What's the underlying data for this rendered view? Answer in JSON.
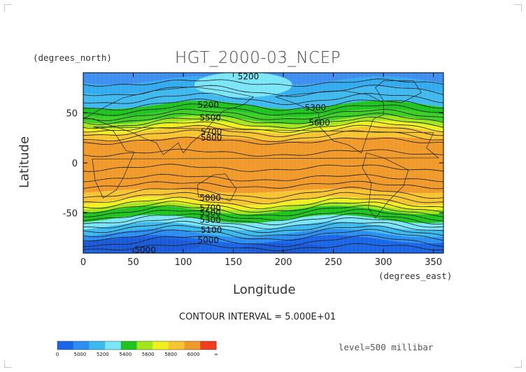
{
  "chart_data": {
    "type": "heatmap",
    "title": "HGT_2000-03_NCEP",
    "xlabel": "Longitude",
    "ylabel": "Latitude",
    "x_units": "(degrees_east)",
    "y_units": "(degrees_north)",
    "xlim": [
      0,
      360
    ],
    "ylim": [
      -90,
      90
    ],
    "x_ticks": [
      0,
      50,
      100,
      150,
      200,
      250,
      300,
      350
    ],
    "y_ticks": [
      -50,
      0,
      50
    ],
    "grid": false,
    "contour_interval": "CONTOUR INTERVAL = 5.000E+01",
    "level_label": "level=500 millibar",
    "contour_labels": [
      {
        "text": "5200",
        "lon": 165,
        "lat": 86
      },
      {
        "text": "5200",
        "lon": 125,
        "lat": 58
      },
      {
        "text": "5300",
        "lon": 232,
        "lat": 55
      },
      {
        "text": "5500",
        "lon": 127,
        "lat": 45
      },
      {
        "text": "5600",
        "lon": 236,
        "lat": 40
      },
      {
        "text": "5700",
        "lon": 128,
        "lat": 31
      },
      {
        "text": "5800",
        "lon": 128,
        "lat": 25
      },
      {
        "text": "5800",
        "lon": 127,
        "lat": -35
      },
      {
        "text": "5700",
        "lon": 127,
        "lat": -45
      },
      {
        "text": "5500",
        "lon": 127,
        "lat": -50
      },
      {
        "text": "5300",
        "lon": 127,
        "lat": -57
      },
      {
        "text": "5100",
        "lon": 128,
        "lat": -67
      },
      {
        "text": "5000",
        "lon": 125,
        "lat": -77
      },
      {
        "text": "5000",
        "lon": 62,
        "lat": -87
      }
    ],
    "colorbar": {
      "labels": [
        "0",
        "5000",
        "5200",
        "5400",
        "5600",
        "5800",
        "6000",
        "∞"
      ],
      "colors": [
        "#1a66e6",
        "#2b8ff2",
        "#3cb9ee",
        "#7be6f8",
        "#1fc41f",
        "#a4e61c",
        "#f0f020",
        "#f7c531",
        "#ef9a2a",
        "#f23d1e"
      ]
    },
    "bands": [
      {
        "lat_top": 90,
        "lat_bottom": 82,
        "color": "#3f8ff0"
      },
      {
        "lat_top": 82,
        "lat_bottom": 72,
        "color": "#35abef"
      },
      {
        "lat_top": 72,
        "lat_bottom": 58,
        "color": "#3fb9ee"
      },
      {
        "lat_top": 58,
        "lat_bottom": 50,
        "color": "#1fc41f"
      },
      {
        "lat_top": 50,
        "lat_bottom": 43,
        "color": "#3ecf24"
      },
      {
        "lat_top": 43,
        "lat_bottom": 38,
        "color": "#a4e61c"
      },
      {
        "lat_top": 38,
        "lat_bottom": 33,
        "color": "#f0f020"
      },
      {
        "lat_top": 33,
        "lat_bottom": 24,
        "color": "#f7c531"
      },
      {
        "lat_top": 24,
        "lat_bottom": -28,
        "color": "#ef9a2a"
      },
      {
        "lat_top": -28,
        "lat_bottom": -38,
        "color": "#f7c531"
      },
      {
        "lat_top": -38,
        "lat_bottom": -43,
        "color": "#f0f020"
      },
      {
        "lat_top": -43,
        "lat_bottom": -47,
        "color": "#a4e61c"
      },
      {
        "lat_top": -47,
        "lat_bottom": -56,
        "color": "#1fc41f"
      },
      {
        "lat_top": -56,
        "lat_bottom": -63,
        "color": "#7be6f8"
      },
      {
        "lat_top": -63,
        "lat_bottom": -70,
        "color": "#3cb9ee"
      },
      {
        "lat_top": -70,
        "lat_bottom": -76,
        "color": "#2b8ff2"
      },
      {
        "lat_top": -76,
        "lat_bottom": -90,
        "color": "#1a66e6"
      }
    ]
  }
}
